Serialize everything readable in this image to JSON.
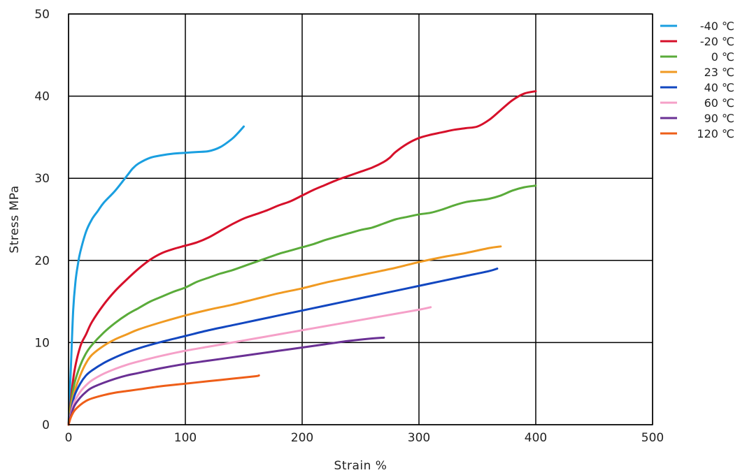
{
  "chart_data": {
    "type": "line",
    "title": "",
    "xlabel": "Strain  %",
    "ylabel": "Stress  MPa",
    "xlim": [
      0,
      500
    ],
    "ylim": [
      0,
      50
    ],
    "xticks": [
      0,
      100,
      200,
      300,
      400,
      500
    ],
    "yticks": [
      0,
      10,
      20,
      30,
      40,
      50
    ],
    "grid": true,
    "legend_position": "right",
    "series": [
      {
        "name": "-40 ℃",
        "color": "#1a9fe0",
        "x": [
          0,
          2,
          4,
          6,
          8,
          10,
          15,
          20,
          25,
          30,
          40,
          50,
          55,
          60,
          70,
          80,
          90,
          100,
          110,
          120,
          130,
          140,
          145,
          150
        ],
        "y": [
          0,
          7,
          14,
          17.5,
          19.5,
          21,
          23.5,
          25,
          26,
          27,
          28.5,
          30.3,
          31.2,
          31.8,
          32.5,
          32.8,
          33,
          33.1,
          33.2,
          33.3,
          33.8,
          34.8,
          35.5,
          36.3
        ]
      },
      {
        "name": "-20 ℃",
        "color": "#d6102a",
        "x": [
          0,
          2,
          5,
          10,
          15,
          20,
          30,
          40,
          50,
          60,
          70,
          80,
          90,
          100,
          110,
          120,
          130,
          140,
          150,
          160,
          170,
          180,
          190,
          200,
          210,
          220,
          230,
          240,
          250,
          260,
          270,
          275,
          280,
          290,
          300,
          310,
          320,
          330,
          340,
          350,
          360,
          370,
          380,
          390,
          400
        ],
        "y": [
          0,
          3,
          6.5,
          9.5,
          11,
          12.5,
          14.6,
          16.3,
          17.7,
          19,
          20.1,
          20.9,
          21.4,
          21.8,
          22.2,
          22.8,
          23.6,
          24.4,
          25.1,
          25.6,
          26.1,
          26.7,
          27.2,
          27.9,
          28.6,
          29.2,
          29.8,
          30.3,
          30.8,
          31.3,
          32,
          32.5,
          33.2,
          34.2,
          34.9,
          35.3,
          35.6,
          35.9,
          36.1,
          36.3,
          37.1,
          38.3,
          39.5,
          40.3,
          40.6
        ]
      },
      {
        "name": "0 ℃",
        "color": "#5aab3a",
        "x": [
          0,
          2,
          5,
          10,
          15,
          20,
          30,
          40,
          50,
          60,
          70,
          80,
          90,
          100,
          110,
          120,
          130,
          140,
          150,
          160,
          170,
          180,
          190,
          200,
          210,
          220,
          230,
          240,
          250,
          260,
          270,
          280,
          290,
          300,
          310,
          320,
          330,
          340,
          350,
          360,
          370,
          380,
          390,
          400
        ],
        "y": [
          0,
          2.5,
          5,
          7.2,
          8.7,
          9.7,
          11.2,
          12.4,
          13.4,
          14.2,
          15,
          15.6,
          16.2,
          16.7,
          17.4,
          17.9,
          18.4,
          18.8,
          19.3,
          19.8,
          20.3,
          20.8,
          21.2,
          21.6,
          22,
          22.5,
          22.9,
          23.3,
          23.7,
          24,
          24.5,
          25,
          25.3,
          25.6,
          25.8,
          26.2,
          26.7,
          27.1,
          27.3,
          27.5,
          27.9,
          28.5,
          28.9,
          29.1
        ]
      },
      {
        "name": "23 ℃",
        "color": "#f09a22",
        "x": [
          0,
          2,
          5,
          10,
          15,
          20,
          30,
          40,
          50,
          60,
          80,
          100,
          120,
          140,
          160,
          180,
          200,
          220,
          240,
          260,
          280,
          300,
          320,
          340,
          360,
          370
        ],
        "y": [
          0,
          2,
          4,
          6,
          7.5,
          8.5,
          9.6,
          10.4,
          11,
          11.6,
          12.5,
          13.3,
          14,
          14.6,
          15.3,
          16,
          16.6,
          17.3,
          17.9,
          18.5,
          19.1,
          19.8,
          20.4,
          20.9,
          21.5,
          21.7
        ]
      },
      {
        "name": "40 ℃",
        "color": "#1247c0",
        "x": [
          0,
          2,
          5,
          10,
          15,
          20,
          30,
          40,
          50,
          60,
          80,
          100,
          120,
          140,
          160,
          180,
          200,
          220,
          240,
          260,
          280,
          300,
          320,
          340,
          360,
          367
        ],
        "y": [
          0,
          1.5,
          3.5,
          5,
          6,
          6.6,
          7.5,
          8.2,
          8.8,
          9.3,
          10.1,
          10.8,
          11.5,
          12.1,
          12.7,
          13.3,
          13.9,
          14.5,
          15.1,
          15.7,
          16.3,
          16.9,
          17.5,
          18.1,
          18.7,
          19
        ]
      },
      {
        "name": "60 ℃",
        "color": "#f5a0c8",
        "x": [
          0,
          2,
          5,
          10,
          15,
          20,
          30,
          40,
          50,
          60,
          80,
          100,
          120,
          140,
          160,
          180,
          200,
          220,
          240,
          260,
          280,
          300,
          310
        ],
        "y": [
          0,
          1.3,
          2.8,
          4,
          4.8,
          5.4,
          6.2,
          6.8,
          7.3,
          7.7,
          8.4,
          9,
          9.5,
          10,
          10.5,
          11,
          11.5,
          12,
          12.5,
          13,
          13.5,
          14,
          14.3
        ]
      },
      {
        "name": "90 ℃",
        "color": "#6a3094",
        "x": [
          0,
          2,
          5,
          10,
          15,
          20,
          30,
          40,
          50,
          60,
          80,
          100,
          120,
          140,
          160,
          180,
          200,
          220,
          240,
          260,
          270
        ],
        "y": [
          0,
          1.1,
          2.3,
          3.3,
          4,
          4.5,
          5.1,
          5.6,
          6,
          6.3,
          6.9,
          7.4,
          7.8,
          8.2,
          8.6,
          9,
          9.4,
          9.8,
          10.2,
          10.5,
          10.6
        ]
      },
      {
        "name": "120 ℃",
        "color": "#ee5e18",
        "x": [
          0,
          2,
          5,
          10,
          15,
          20,
          30,
          40,
          50,
          60,
          80,
          100,
          120,
          140,
          160,
          163
        ],
        "y": [
          0,
          0.9,
          1.7,
          2.4,
          2.9,
          3.2,
          3.6,
          3.9,
          4.1,
          4.3,
          4.7,
          5,
          5.3,
          5.6,
          5.9,
          6
        ]
      }
    ]
  }
}
